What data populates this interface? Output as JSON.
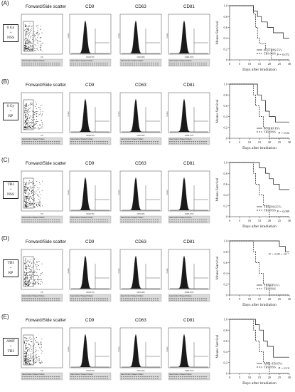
{
  "columns": {
    "scatter": "Forward/Side scatter",
    "cd9": "CD9",
    "cd63": "CD63",
    "cd81": "CD81"
  },
  "panels": [
    {
      "letter": "(A)",
      "condition": [
        "0 Gy",
        "+",
        "NSS"
      ],
      "p_value": "P = 0.072",
      "legend": [
        "0Gy+NSS EVs",
        "TBI+NSS"
      ]
    },
    {
      "letter": "(B)",
      "condition": [
        "0 Gy",
        "+",
        "RP"
      ],
      "p_value": "P = 0.22",
      "legend": [
        "0Gy+RP EVs",
        "TBI+NSS"
      ]
    },
    {
      "letter": "(C)",
      "condition": [
        "TBI",
        "+",
        "NSS"
      ],
      "p_value": "P = 0.009",
      "legend": [
        "TBI+NSS EVs",
        "TBI+NSS"
      ]
    },
    {
      "letter": "(D)",
      "condition": [
        "TBI",
        "+",
        "RP"
      ],
      "p_value": "P = 1.09 × 10⁻⁵",
      "legend": [
        "TBI+RP EVs",
        "TBI+NSS"
      ]
    },
    {
      "letter": "(E)",
      "condition": [
        "AMF",
        "+",
        "TBI"
      ],
      "p_value": "P = 0.14",
      "legend": [
        "AMF+TBI EVs",
        "TBI+NSS"
      ]
    }
  ],
  "survival_axes": {
    "ylabel": "Mouse Survival",
    "xlabel": "Days after irradiation",
    "xticks": [
      0,
      5,
      10,
      15,
      20,
      25,
      30
    ],
    "yticks": [
      "0",
      "0.2",
      "0.4",
      "0.6",
      "0.8",
      "1.0"
    ]
  },
  "flow_labels": {
    "scatter_gate": "[Ungated] FS / SS",
    "cd9_gate": "[B] {20-FITC}",
    "cd63_gate": "[D] {20-PE}",
    "cd81_gate": "[D] {20-PC5}",
    "ylabel_count": "Count",
    "xlabel_fs": "FS",
    "xlabel_cd9": "CD9-FITC",
    "xlabel_cd63": "CD63-PE",
    "xlabel_cd81": "CD81-PC5",
    "table_header": "Gate  Number  %Gated  X-Mean"
  },
  "chart_data": [
    {
      "type": "line",
      "title": "",
      "xlabel": "Days after irradiation",
      "ylabel": "Mouse Survival",
      "xlim": [
        0,
        30
      ],
      "ylim": [
        0,
        1
      ],
      "p_value": "P = 0.072",
      "series": [
        {
          "name": "0Gy+NSS EVs",
          "style": "solid",
          "x": [
            0,
            10,
            12,
            14,
            16,
            19,
            22,
            27,
            30
          ],
          "y": [
            1.0,
            1.0,
            0.9,
            0.8,
            0.7,
            0.6,
            0.5,
            0.4,
            0.4
          ]
        },
        {
          "name": "TBI+NSS",
          "style": "dashed",
          "x": [
            0,
            10,
            12,
            13,
            14,
            15,
            18,
            21,
            30
          ],
          "y": [
            1.0,
            1.0,
            0.85,
            0.6,
            0.4,
            0.3,
            0.2,
            0.0,
            0.0
          ]
        }
      ]
    },
    {
      "type": "line",
      "title": "",
      "xlabel": "Days after irradiation",
      "ylabel": "Mouse Survival",
      "xlim": [
        0,
        30
      ],
      "ylim": [
        0,
        1
      ],
      "p_value": "P = 0.22",
      "series": [
        {
          "name": "0Gy+RP EVs",
          "style": "solid",
          "x": [
            0,
            12,
            14,
            16,
            18,
            20,
            23,
            30
          ],
          "y": [
            1.0,
            1.0,
            0.8,
            0.7,
            0.5,
            0.4,
            0.3,
            0.3
          ]
        },
        {
          "name": "TBI+NSS",
          "style": "dashed",
          "x": [
            0,
            10,
            12,
            13,
            15,
            17,
            20,
            30
          ],
          "y": [
            1.0,
            1.0,
            0.8,
            0.6,
            0.4,
            0.2,
            0.0,
            0.0
          ]
        }
      ]
    },
    {
      "type": "line",
      "title": "",
      "xlabel": "Days after irradiation",
      "ylabel": "Mouse Survival",
      "xlim": [
        0,
        30
      ],
      "ylim": [
        0,
        1
      ],
      "p_value": "P = 0.009",
      "series": [
        {
          "name": "TBI+NSS EVs",
          "style": "solid",
          "x": [
            0,
            12,
            15,
            18,
            20,
            22,
            25,
            30
          ],
          "y": [
            1.0,
            1.0,
            0.9,
            0.8,
            0.7,
            0.6,
            0.5,
            0.5
          ]
        },
        {
          "name": "TBI+NSS",
          "style": "dashed",
          "x": [
            0,
            10,
            12,
            13,
            15,
            17,
            20,
            30
          ],
          "y": [
            1.0,
            1.0,
            0.8,
            0.6,
            0.4,
            0.2,
            0.0,
            0.0
          ]
        }
      ]
    },
    {
      "type": "line",
      "title": "",
      "xlabel": "Days after irradiation",
      "ylabel": "Mouse Survival",
      "xlim": [
        0,
        30
      ],
      "ylim": [
        0,
        1
      ],
      "p_value": "P = 1.09 × 10⁻⁵",
      "series": [
        {
          "name": "TBI+RP EVs",
          "style": "solid",
          "x": [
            0,
            22,
            25,
            28,
            30
          ],
          "y": [
            1.0,
            1.0,
            0.9,
            0.8,
            0.8
          ]
        },
        {
          "name": "TBI+NSS",
          "style": "dashed",
          "x": [
            0,
            10,
            12,
            13,
            15,
            17,
            20,
            30
          ],
          "y": [
            1.0,
            1.0,
            0.8,
            0.6,
            0.4,
            0.2,
            0.0,
            0.0
          ]
        }
      ]
    },
    {
      "type": "line",
      "title": "",
      "xlabel": "Days after irradiation",
      "ylabel": "Mouse Survival",
      "xlim": [
        0,
        30
      ],
      "ylim": [
        0,
        1
      ],
      "p_value": "P = 0.14",
      "series": [
        {
          "name": "AMF+TBI EVs",
          "style": "solid",
          "x": [
            0,
            11,
            13,
            15,
            17,
            19,
            22,
            30
          ],
          "y": [
            1.0,
            1.0,
            0.9,
            0.8,
            0.6,
            0.5,
            0.3,
            0.3
          ]
        },
        {
          "name": "TBI+NSS",
          "style": "dashed",
          "x": [
            0,
            10,
            12,
            13,
            15,
            17,
            20,
            30
          ],
          "y": [
            1.0,
            1.0,
            0.8,
            0.6,
            0.4,
            0.2,
            0.0,
            0.0
          ]
        }
      ]
    }
  ]
}
